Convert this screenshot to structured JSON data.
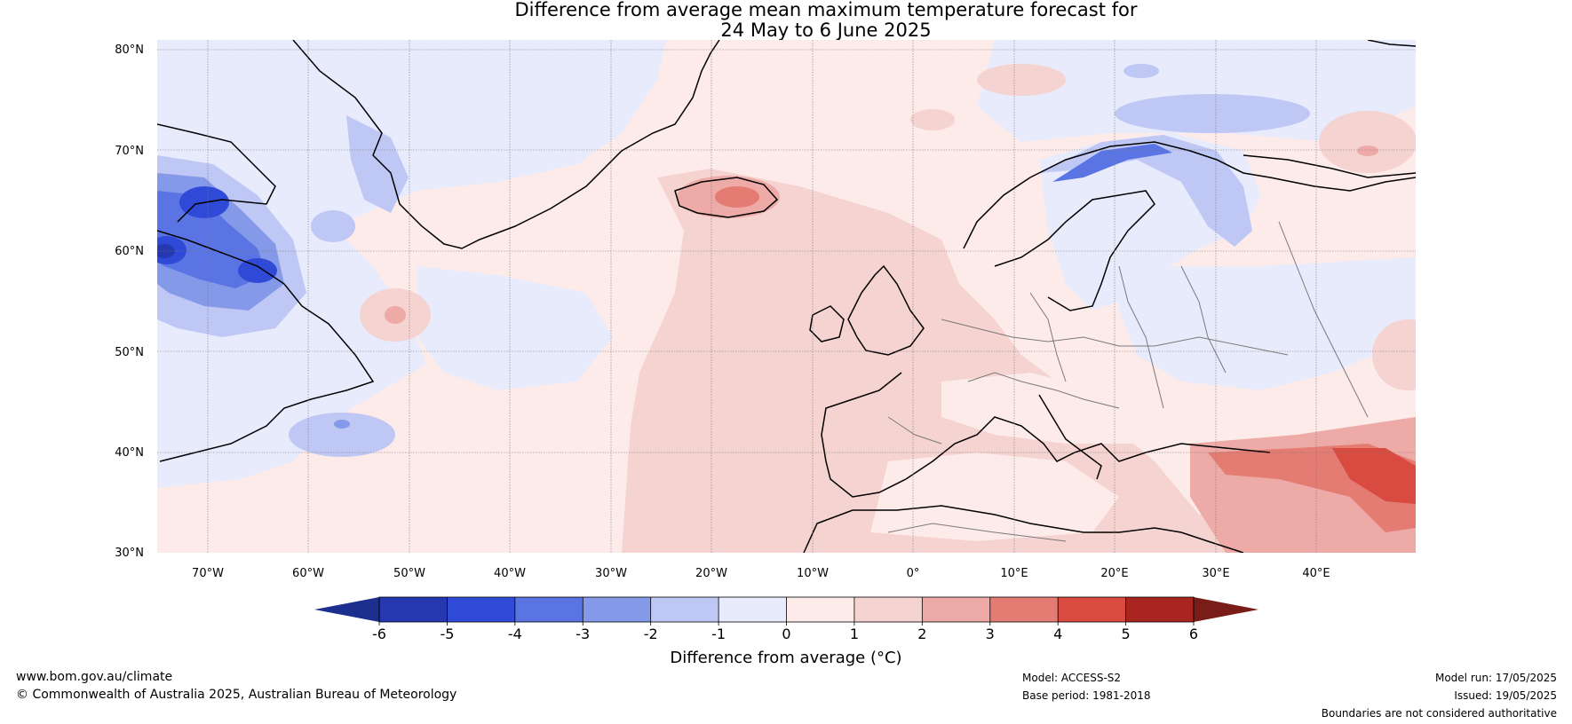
{
  "title_line1": "Difference from average mean maximum temperature forecast for",
  "title_line2": "24 May to 6 June 2025",
  "lat_labels": [
    "80°N",
    "70°N",
    "60°N",
    "50°N",
    "40°N",
    "30°N"
  ],
  "lon_labels": [
    "70°W",
    "60°W",
    "50°W",
    "40°W",
    "30°W",
    "20°W",
    "10°W",
    "0°",
    "10°E",
    "20°E",
    "30°E",
    "40°E"
  ],
  "colorbar": {
    "ticks": [
      "-6",
      "-5",
      "-4",
      "-3",
      "-2",
      "-1",
      "0",
      "1",
      "2",
      "3",
      "4",
      "5",
      "6"
    ],
    "label": "Difference from average (°C)",
    "colors": {
      "below_-6": "#1c2f8f",
      "-6_-5": "#2638b0",
      "-5_-4": "#304ad8",
      "-4_-3": "#5b74e4",
      "-3_-2": "#8499e8",
      "-2_-1": "#bfc7f4",
      "-1_0": "#e8ebfc",
      "0_1": "#fcebe9",
      "1_2": "#f5d3d0",
      "2_3": "#eeaaa6",
      "3_4": "#e57c74",
      "4_5": "#d94a40",
      "5_6": "#a8261f",
      "above_6": "#7a1d18"
    }
  },
  "footer": {
    "site": "www.bom.gov.au/climate",
    "copyright": "© Commonwealth of Australia 2025, Australian Bureau of Meteorology",
    "model": "Model: ACCESS-S2",
    "base_period": "Base period: 1981-2018",
    "model_run": "Model run: 17/05/2025",
    "issued": "Issued: 19/05/2025",
    "boundaries": "Boundaries are not considered authoritative"
  }
}
